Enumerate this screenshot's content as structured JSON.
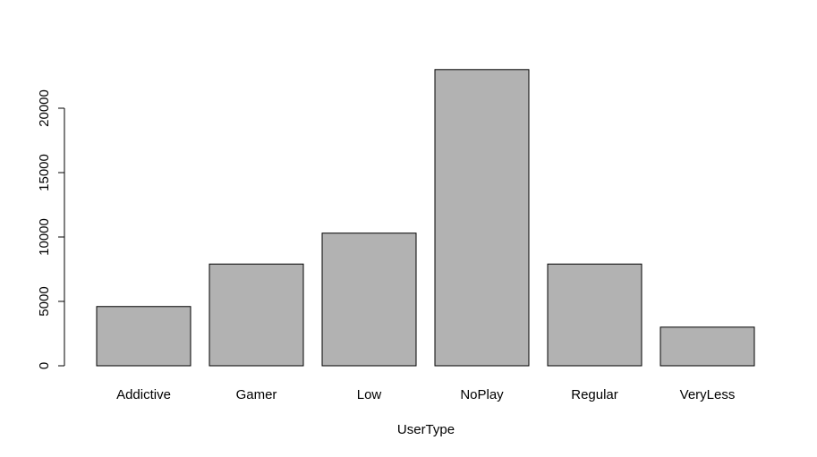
{
  "chart_data": {
    "type": "bar",
    "x_label": "UserType",
    "categories": [
      "Addictive",
      "Gamer",
      "Low",
      "NoPlay",
      "Regular",
      "VeryLess"
    ],
    "values": [
      4600,
      7900,
      10300,
      23000,
      7900,
      3000
    ],
    "color": "#b2b2b2",
    "ylim": [
      0,
      24000
    ],
    "yticks": [
      0,
      5000,
      10000,
      15000,
      20000
    ]
  }
}
